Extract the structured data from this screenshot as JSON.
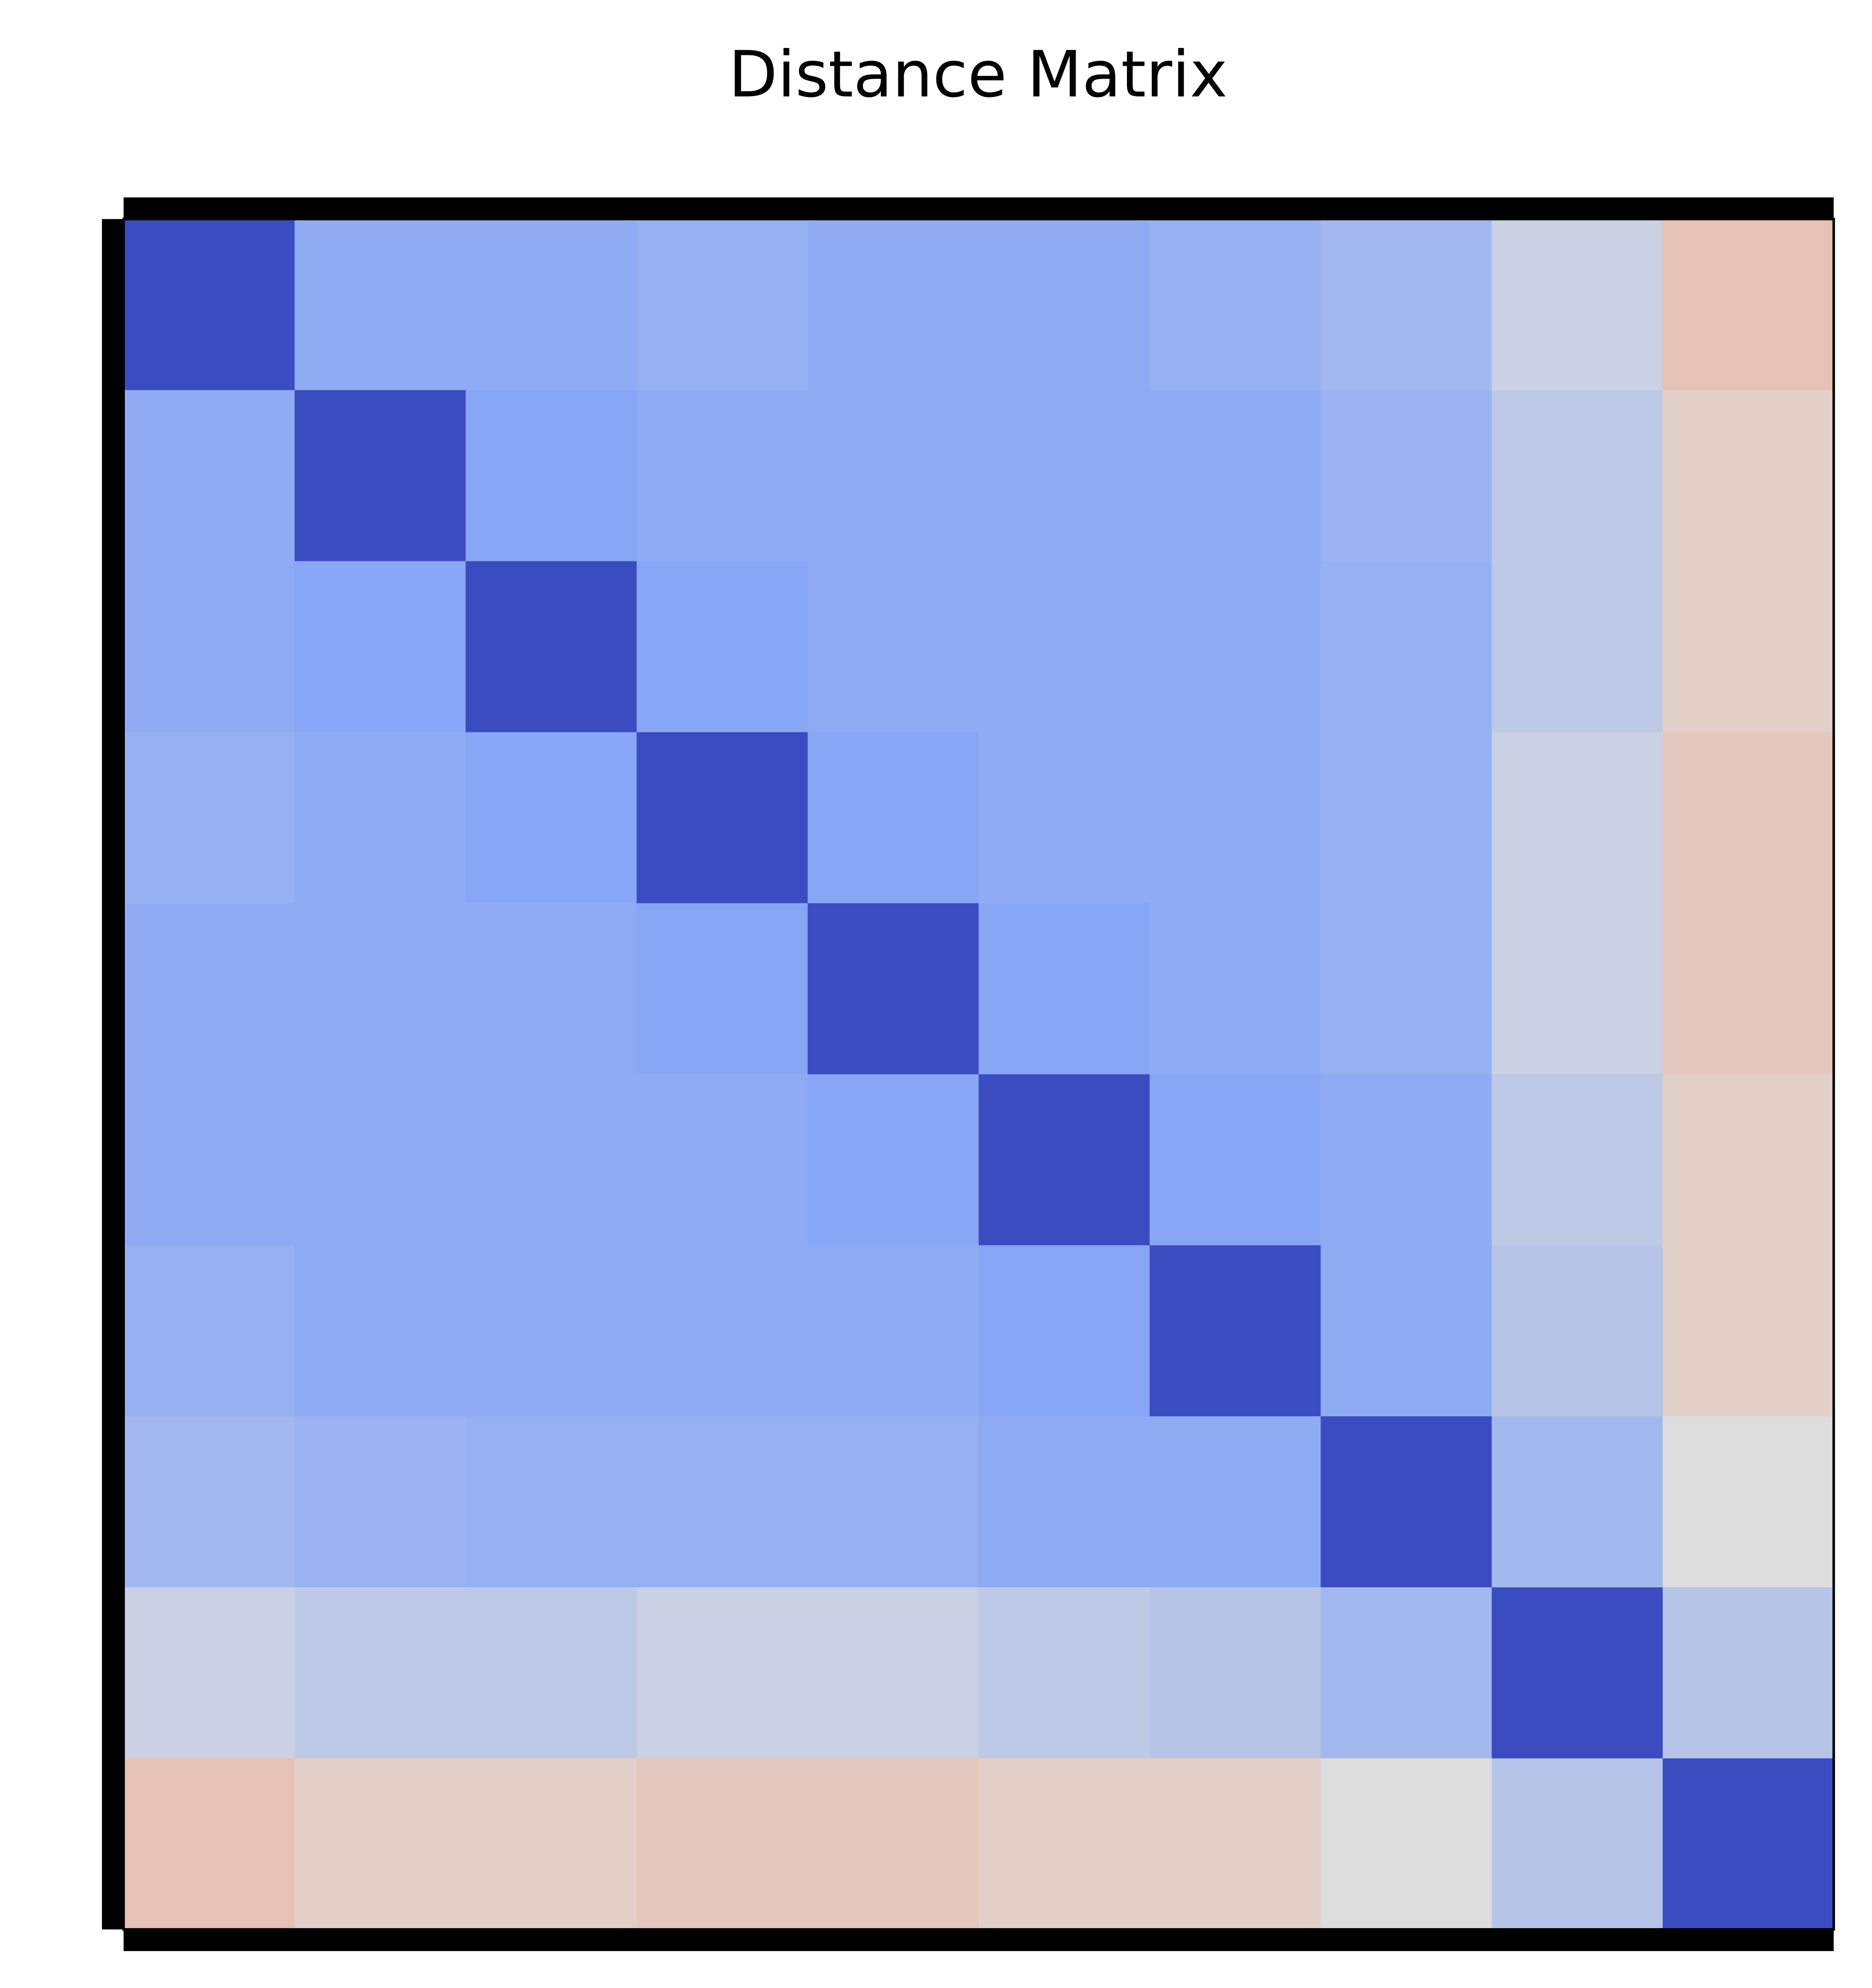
{
  "chart_data": {
    "type": "heatmap",
    "title": "Distance Matrix",
    "colormap": "coolwarm",
    "clim": [
      0,
      1
    ],
    "matrix": [
      [
        0,
        0.3,
        0.3,
        0.32,
        0.3,
        0.3,
        0.32,
        0.35,
        0.45,
        0.6
      ],
      [
        0.3,
        0,
        0.28,
        0.3,
        0.3,
        0.3,
        0.3,
        0.33,
        0.42,
        0.55
      ],
      [
        0.3,
        0.28,
        0,
        0.28,
        0.3,
        0.3,
        0.3,
        0.32,
        0.42,
        0.55
      ],
      [
        0.32,
        0.3,
        0.28,
        0,
        0.28,
        0.3,
        0.3,
        0.32,
        0.45,
        0.58
      ],
      [
        0.3,
        0.3,
        0.3,
        0.28,
        0,
        0.28,
        0.3,
        0.32,
        0.45,
        0.58
      ],
      [
        0.3,
        0.3,
        0.3,
        0.3,
        0.28,
        0,
        0.28,
        0.3,
        0.42,
        0.55
      ],
      [
        0.32,
        0.3,
        0.3,
        0.3,
        0.3,
        0.28,
        0,
        0.3,
        0.4,
        0.55
      ],
      [
        0.35,
        0.33,
        0.32,
        0.32,
        0.32,
        0.3,
        0.3,
        0,
        0.35,
        0.5
      ],
      [
        0.45,
        0.42,
        0.42,
        0.45,
        0.45,
        0.42,
        0.4,
        0.35,
        0,
        0.4
      ],
      [
        0.6,
        0.55,
        0.55,
        0.58,
        0.58,
        0.55,
        0.55,
        0.5,
        0.4,
        0
      ]
    ]
  }
}
